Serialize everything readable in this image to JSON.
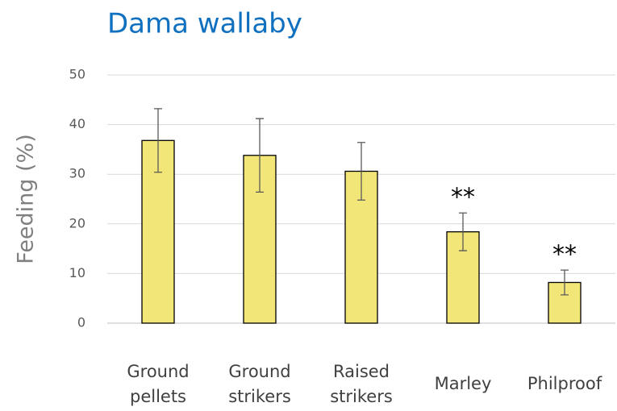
{
  "chart_data": {
    "type": "bar",
    "title": "Dama wallaby",
    "ylabel": "Feeding (%)",
    "categories": [
      "Ground pellets",
      "Ground strikers",
      "Raised strikers",
      "Marley",
      "Philproof"
    ],
    "values": [
      36.8,
      33.8,
      30.6,
      18.4,
      8.2
    ],
    "errors": [
      6.4,
      7.4,
      5.8,
      3.8,
      2.5
    ],
    "significance": [
      null,
      null,
      null,
      "**",
      "**"
    ],
    "color": "#f2e678",
    "ylim": [
      0,
      50
    ],
    "yticks": [
      0,
      10,
      20,
      30,
      40,
      50
    ],
    "grid": true
  }
}
